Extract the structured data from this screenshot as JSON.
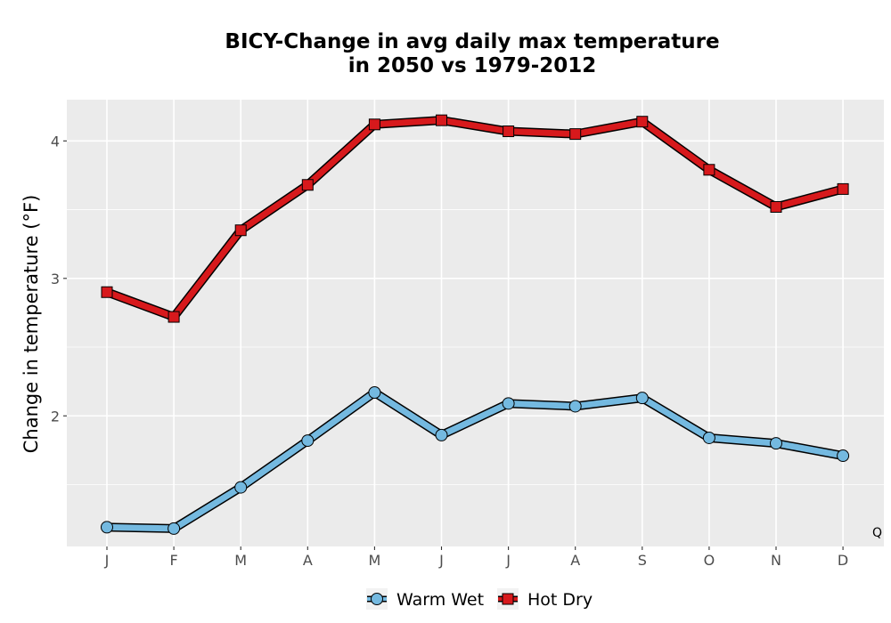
{
  "chart_data": {
    "type": "line",
    "title": "BICY-Change in avg daily max temperature",
    "subtitle": "in 2050 vs 1979-2012",
    "xlabel": "",
    "ylabel": "Change in temperature (°F)",
    "categories": [
      "J",
      "F",
      "M",
      "A",
      "M",
      "J",
      "J",
      "A",
      "S",
      "O",
      "N",
      "D"
    ],
    "ylim": [
      1.05,
      4.3
    ],
    "yticks": [
      2,
      3,
      4
    ],
    "grid": true,
    "legend_position": "bottom",
    "corner_label": "Q",
    "series": [
      {
        "name": "Warm Wet",
        "color": "#74b9e0",
        "marker": "circle",
        "values": [
          1.19,
          1.18,
          1.48,
          1.82,
          2.17,
          1.86,
          2.09,
          2.07,
          2.13,
          1.84,
          1.8,
          1.71
        ]
      },
      {
        "name": "Hot Dry",
        "color": "#d7191c",
        "marker": "square",
        "values": [
          2.9,
          2.72,
          3.35,
          3.68,
          4.12,
          4.15,
          4.07,
          4.05,
          4.14,
          3.79,
          3.52,
          3.65
        ]
      }
    ]
  }
}
